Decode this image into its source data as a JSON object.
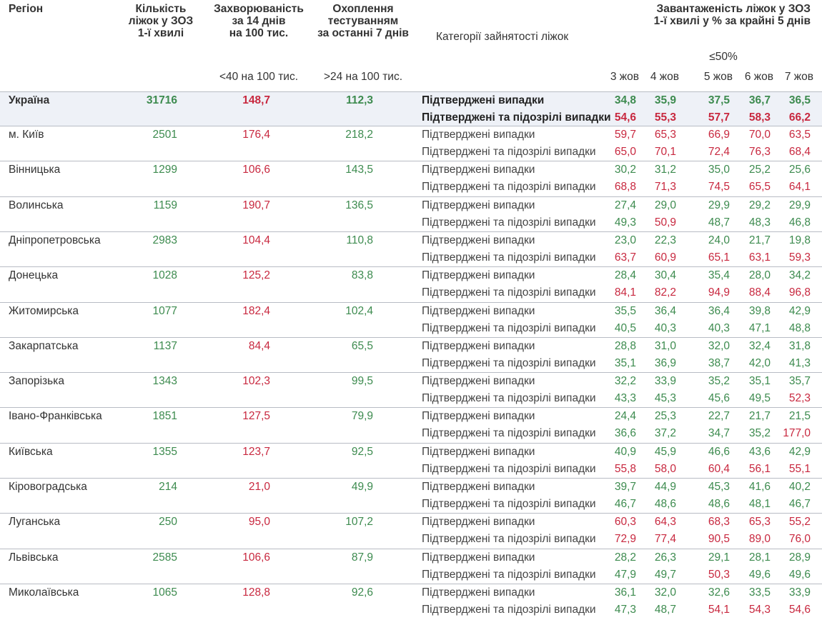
{
  "header": {
    "region": "Регіон",
    "beds": [
      "Кількість",
      "ліжок у ЗОЗ",
      "1-ї хвилі"
    ],
    "incidence": [
      "Захворюваність",
      "за 14 днів",
      "на 100 тис."
    ],
    "testing": [
      "Охоплення",
      "тестуванням",
      "за останні 7 днів"
    ],
    "category": "Категорії зайнятості ліжок",
    "occupancy": [
      "Завантаженість ліжок у ЗОЗ",
      "1-ї хвилі у % за крайні 5 днів"
    ],
    "incidence_note": "<40 на 100 тис.",
    "testing_note": ">24 на 100 тис.",
    "occupancy_note": "≤50%",
    "dates": [
      "3 жов",
      "4 жов",
      "5 жов",
      "6 жов",
      "7 жов"
    ]
  },
  "category_labels": [
    "Підтверджені випадки",
    "Підтверджені та підозрілі випадки"
  ],
  "settings": {
    "beds_color": "#3d8b4f",
    "incidence_color": "#c8283f",
    "testing_color": "#3d8b4f",
    "good_color": "#3d8b4f",
    "bad_color": "#c8283f",
    "occupancy_limit": 50
  },
  "rows": [
    {
      "region": "Україна",
      "beds": "31716",
      "incidence": "148,7",
      "testing": "112,3",
      "confirmed": [
        "34,8",
        "35,9",
        "37,5",
        "36,7",
        "36,5"
      ],
      "suspected": [
        "54,6",
        "55,3",
        "57,7",
        "58,3",
        "66,2"
      ]
    },
    {
      "region": "м. Київ",
      "beds": "2501",
      "incidence": "176,4",
      "testing": "218,2",
      "confirmed": [
        "59,7",
        "65,3",
        "66,9",
        "70,0",
        "63,5"
      ],
      "suspected": [
        "65,0",
        "70,1",
        "72,4",
        "76,3",
        "68,4"
      ]
    },
    {
      "region": "Вінницька",
      "beds": "1299",
      "incidence": "106,6",
      "testing": "143,5",
      "confirmed": [
        "30,2",
        "31,2",
        "35,0",
        "25,2",
        "25,6"
      ],
      "suspected": [
        "68,8",
        "71,3",
        "74,5",
        "65,5",
        "64,1"
      ]
    },
    {
      "region": "Волинська",
      "beds": "1159",
      "incidence": "190,7",
      "testing": "136,5",
      "confirmed": [
        "27,4",
        "29,0",
        "29,9",
        "29,2",
        "29,9"
      ],
      "suspected": [
        "49,3",
        "50,9",
        "48,7",
        "48,3",
        "46,8"
      ]
    },
    {
      "region": "Дніпропетровська",
      "beds": "2983",
      "incidence": "104,4",
      "testing": "110,8",
      "confirmed": [
        "23,0",
        "22,3",
        "24,0",
        "21,7",
        "19,8"
      ],
      "suspected": [
        "63,7",
        "60,9",
        "65,1",
        "63,1",
        "59,3"
      ]
    },
    {
      "region": "Донецька",
      "beds": "1028",
      "incidence": "125,2",
      "testing": "83,8",
      "confirmed": [
        "28,4",
        "30,4",
        "35,4",
        "28,0",
        "34,2"
      ],
      "suspected": [
        "84,1",
        "82,2",
        "94,9",
        "88,4",
        "96,8"
      ]
    },
    {
      "region": "Житомирська",
      "beds": "1077",
      "incidence": "182,4",
      "testing": "102,4",
      "confirmed": [
        "35,5",
        "36,4",
        "36,4",
        "39,8",
        "42,9"
      ],
      "suspected": [
        "40,5",
        "40,3",
        "40,3",
        "47,1",
        "48,8"
      ]
    },
    {
      "region": "Закарпатська",
      "beds": "1137",
      "incidence": "84,4",
      "testing": "65,5",
      "confirmed": [
        "28,8",
        "31,0",
        "32,0",
        "32,4",
        "31,8"
      ],
      "suspected": [
        "35,1",
        "36,9",
        "38,7",
        "42,0",
        "41,3"
      ]
    },
    {
      "region": "Запорізька",
      "beds": "1343",
      "incidence": "102,3",
      "testing": "99,5",
      "confirmed": [
        "32,2",
        "33,9",
        "35,2",
        "35,1",
        "35,7"
      ],
      "suspected": [
        "43,3",
        "45,3",
        "45,6",
        "49,5",
        "52,3"
      ]
    },
    {
      "region": "Івано-Франківська",
      "beds": "1851",
      "incidence": "127,5",
      "testing": "79,9",
      "confirmed": [
        "24,4",
        "25,3",
        "22,7",
        "21,7",
        "21,5"
      ],
      "suspected": [
        "36,6",
        "37,2",
        "34,7",
        "35,2",
        "177,0"
      ]
    },
    {
      "region": "Київська",
      "beds": "1355",
      "incidence": "123,7",
      "testing": "92,5",
      "confirmed": [
        "40,9",
        "45,9",
        "46,6",
        "43,6",
        "42,9"
      ],
      "suspected": [
        "55,8",
        "58,0",
        "60,4",
        "56,1",
        "55,1"
      ]
    },
    {
      "region": "Кіровоградська",
      "beds": "214",
      "incidence": "21,0",
      "testing": "49,9",
      "confirmed": [
        "39,7",
        "44,9",
        "45,3",
        "41,6",
        "40,2"
      ],
      "suspected": [
        "46,7",
        "48,6",
        "48,6",
        "48,1",
        "46,7"
      ]
    },
    {
      "region": "Луганська",
      "beds": "250",
      "incidence": "95,0",
      "testing": "107,2",
      "confirmed": [
        "60,3",
        "64,3",
        "68,3",
        "65,3",
        "55,2"
      ],
      "suspected": [
        "72,9",
        "77,4",
        "90,5",
        "89,0",
        "76,0"
      ]
    },
    {
      "region": "Львівська",
      "beds": "2585",
      "incidence": "106,6",
      "testing": "87,9",
      "confirmed": [
        "28,2",
        "26,3",
        "29,1",
        "28,1",
        "28,9"
      ],
      "suspected": [
        "47,9",
        "49,7",
        "50,3",
        "49,6",
        "49,6"
      ]
    },
    {
      "region": "Миколаївська",
      "beds": "1065",
      "incidence": "128,8",
      "testing": "92,6",
      "confirmed": [
        "36,1",
        "32,0",
        "32,6",
        "33,5",
        "33,9"
      ],
      "suspected": [
        "47,3",
        "48,7",
        "54,1",
        "54,3",
        "54,6"
      ]
    }
  ]
}
